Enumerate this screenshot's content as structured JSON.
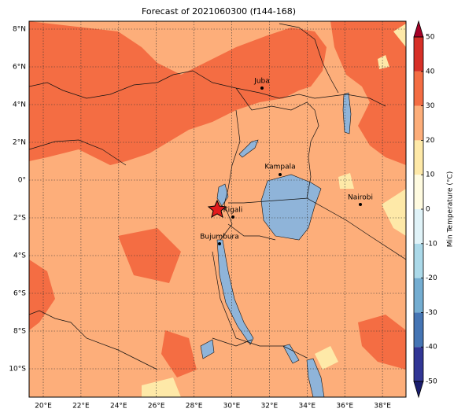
{
  "header": {
    "title": "Forecast of 2021060300 (f144-168)"
  },
  "map": {
    "lon_ticks": [
      {
        "value": 20,
        "label": "20°E"
      },
      {
        "value": 22,
        "label": "22°E"
      },
      {
        "value": 24,
        "label": "24°E"
      },
      {
        "value": 26,
        "label": "26°E"
      },
      {
        "value": 28,
        "label": "28°E"
      },
      {
        "value": 30,
        "label": "30°E"
      },
      {
        "value": 32,
        "label": "32°E"
      },
      {
        "value": 34,
        "label": "34°E"
      },
      {
        "value": 36,
        "label": "36°E"
      },
      {
        "value": 38,
        "label": "38°E"
      }
    ],
    "lat_ticks": [
      {
        "value": 8,
        "label": "8°N"
      },
      {
        "value": 6,
        "label": "6°N"
      },
      {
        "value": 4,
        "label": "4°N"
      },
      {
        "value": 2,
        "label": "2°N"
      },
      {
        "value": 0,
        "label": "0°"
      },
      {
        "value": -2,
        "label": "2°S"
      },
      {
        "value": -4,
        "label": "4°S"
      },
      {
        "value": -6,
        "label": "6°S"
      },
      {
        "value": -8,
        "label": "8°S"
      },
      {
        "value": -10,
        "label": "10°S"
      }
    ],
    "cities": [
      "Juba",
      "Kampala",
      "Nairobi",
      "Kigali",
      "Bujumbura"
    ]
  },
  "colorbar": {
    "label": "Min Temperature (°C)",
    "ticks": [
      -50,
      -40,
      -30,
      -20,
      -10,
      0,
      10,
      20,
      30,
      40,
      50
    ],
    "colors": [
      "#313695",
      "#4575b4",
      "#74add1",
      "#abd9e9",
      "#e0f3f8",
      "#fffbe0",
      "#fee9a8",
      "#fdae7a",
      "#f46d43",
      "#d73027"
    ],
    "under_color": "#1a1d6e",
    "over_color": "#a50026"
  }
}
